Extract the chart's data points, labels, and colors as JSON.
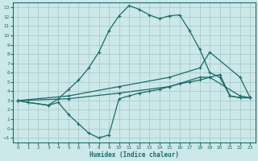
{
  "xlabel": "Humidex (Indice chaleur)",
  "bg_color": "#cce8e8",
  "grid_color": "#aacccc",
  "line_color": "#1a6b6b",
  "xlim": [
    -0.5,
    23.5
  ],
  "ylim": [
    -1.5,
    13.5
  ],
  "xticks": [
    0,
    1,
    2,
    3,
    4,
    5,
    6,
    7,
    8,
    9,
    10,
    11,
    12,
    13,
    14,
    15,
    16,
    17,
    18,
    19,
    20,
    21,
    22,
    23
  ],
  "yticks": [
    -1,
    0,
    1,
    2,
    3,
    4,
    5,
    6,
    7,
    8,
    9,
    10,
    11,
    12,
    13
  ],
  "line1_x": [
    0,
    1,
    3,
    4,
    5,
    6,
    7,
    8,
    9,
    10,
    11,
    12,
    13,
    14,
    15,
    16,
    17,
    18,
    19,
    20,
    21,
    22,
    23
  ],
  "line1_y": [
    3.0,
    2.8,
    2.5,
    3.2,
    4.2,
    5.2,
    6.5,
    8.2,
    10.5,
    12.1,
    13.2,
    12.8,
    12.2,
    11.8,
    12.1,
    12.2,
    10.5,
    8.5,
    6.0,
    5.5,
    3.5,
    3.3,
    3.3
  ],
  "line2_x": [
    0,
    1,
    3,
    4,
    5,
    6,
    7,
    8,
    9,
    10,
    11,
    12,
    13,
    14,
    15,
    16,
    17,
    18,
    19,
    20,
    21,
    22,
    23
  ],
  "line2_y": [
    3.0,
    2.8,
    2.5,
    2.8,
    1.5,
    0.5,
    -0.5,
    -1.0,
    -0.7,
    3.2,
    3.5,
    3.8,
    4.0,
    4.2,
    4.5,
    4.8,
    5.0,
    5.2,
    5.5,
    5.8,
    3.5,
    3.3,
    3.3
  ],
  "line3_x": [
    0,
    5,
    10,
    15,
    18,
    19,
    22,
    23
  ],
  "line3_y": [
    3.0,
    3.5,
    4.5,
    5.5,
    6.5,
    8.2,
    5.5,
    3.3
  ],
  "line4_x": [
    0,
    5,
    10,
    15,
    18,
    19,
    22,
    23
  ],
  "line4_y": [
    3.0,
    3.2,
    3.8,
    4.5,
    5.5,
    5.5,
    3.5,
    3.3
  ]
}
